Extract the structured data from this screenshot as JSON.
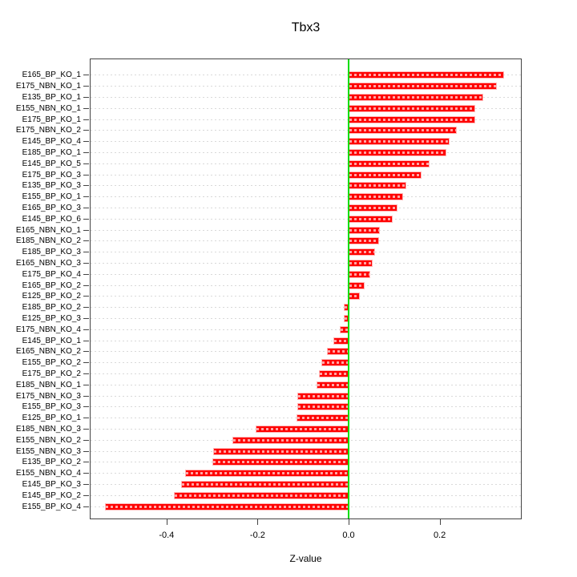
{
  "chart_data": {
    "type": "bar",
    "orientation": "horizontal",
    "title": "Tbx3",
    "xlabel": "Z-value",
    "x_tick_labels": [
      "-0.4",
      "-0.2",
      "0.0",
      "0.2"
    ],
    "x_tick_values": [
      -0.4,
      -0.2,
      0.0,
      0.2
    ],
    "xlim": [
      -0.568,
      0.379
    ],
    "grid": "dotted-horizontal-per-row",
    "zero_line": true,
    "legend": false,
    "categories": [
      "E165_BP_KO_1",
      "E175_NBN_KO_1",
      "E135_BP_KO_1",
      "E155_NBN_KO_1",
      "E175_BP_KO_1",
      "E175_NBN_KO_2",
      "E145_BP_KO_4",
      "E185_BP_KO_1",
      "E145_BP_KO_5",
      "E175_BP_KO_3",
      "E135_BP_KO_3",
      "E155_BP_KO_1",
      "E165_BP_KO_3",
      "E145_BP_KO_6",
      "E165_NBN_KO_1",
      "E185_NBN_KO_2",
      "E185_BP_KO_3",
      "E165_NBN_KO_3",
      "E175_BP_KO_4",
      "E165_BP_KO_2",
      "E125_BP_KO_2",
      "E185_BP_KO_2",
      "E125_BP_KO_3",
      "E175_NBN_KO_4",
      "E145_BP_KO_1",
      "E165_NBN_KO_2",
      "E155_BP_KO_2",
      "E175_BP_KO_2",
      "E185_NBN_KO_1",
      "E175_NBN_KO_3",
      "E155_BP_KO_3",
      "E125_BP_KO_1",
      "E185_NBN_KO_3",
      "E155_NBN_KO_2",
      "E155_NBN_KO_3",
      "E135_BP_KO_2",
      "E155_NBN_KO_4",
      "E145_BP_KO_3",
      "E145_BP_KO_2",
      "E155_BP_KO_4"
    ],
    "values": [
      0.341,
      0.326,
      0.296,
      0.279,
      0.278,
      0.237,
      0.222,
      0.215,
      0.178,
      0.16,
      0.127,
      0.12,
      0.108,
      0.097,
      0.069,
      0.067,
      0.058,
      0.053,
      0.047,
      0.036,
      0.024,
      -0.01,
      -0.011,
      -0.019,
      -0.033,
      -0.048,
      -0.06,
      -0.065,
      -0.071,
      -0.113,
      -0.113,
      -0.114,
      -0.205,
      -0.256,
      -0.298,
      -0.3,
      -0.359,
      -0.368,
      -0.384,
      -0.535
    ],
    "colors": {
      "bar_fill": "#FF0000",
      "bar_border": "#FFB6B6",
      "zero_line": "#00DD00",
      "gridline": "#D9D9D9",
      "axis": "#444444",
      "text": "#000000",
      "background": "#FFFFFF"
    }
  }
}
